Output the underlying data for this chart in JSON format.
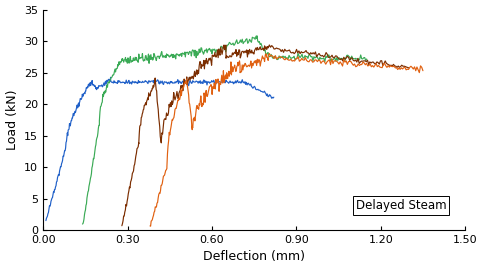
{
  "title": "",
  "xlabel": "Deflection (mm)",
  "ylabel": "Load (kN)",
  "annotation": "Delayed Steam",
  "xlim": [
    0.0,
    1.5
  ],
  "ylim": [
    0,
    35
  ],
  "xticks": [
    0.0,
    0.3,
    0.6,
    0.9,
    1.2,
    1.5
  ],
  "yticks": [
    0,
    5,
    10,
    15,
    20,
    25,
    30,
    35
  ],
  "colors": {
    "blue": "#2060c8",
    "green": "#3aaa55",
    "brown": "#7B2D00",
    "orange": "#E06010"
  },
  "figsize": [
    4.83,
    2.69
  ],
  "dpi": 100
}
